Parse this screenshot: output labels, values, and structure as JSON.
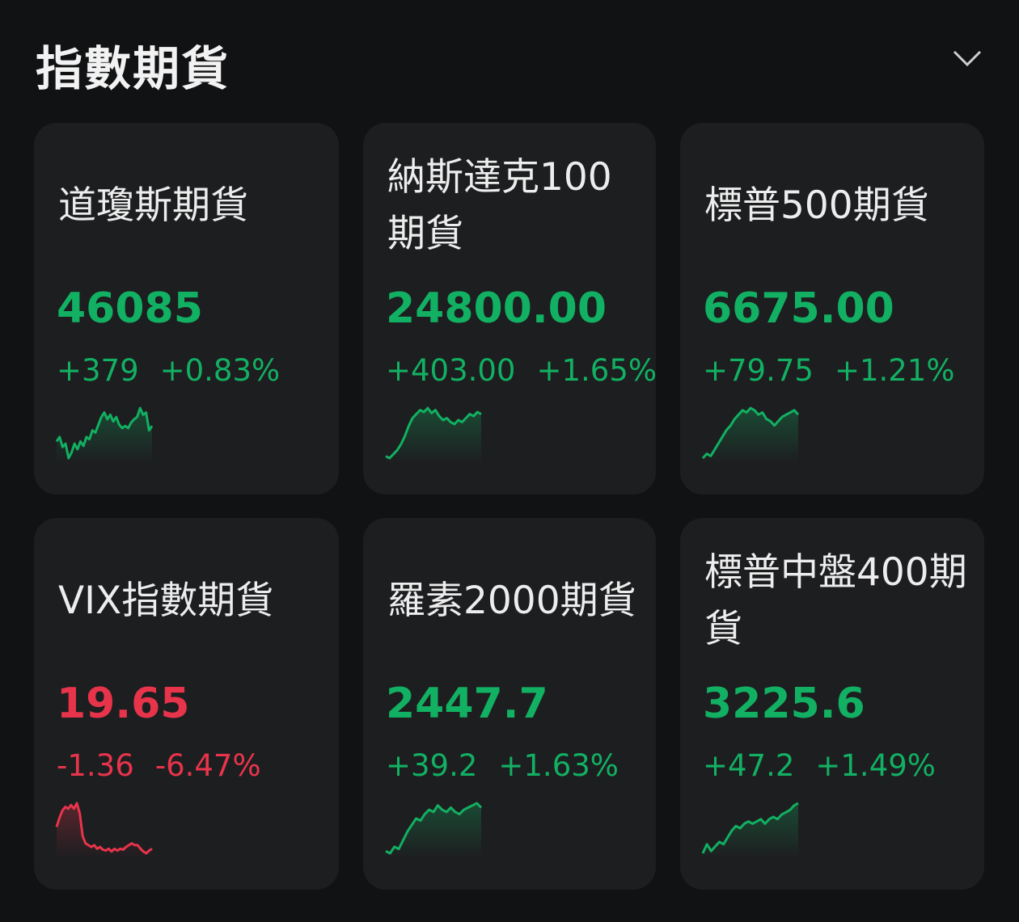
{
  "header": {
    "title": "指數期貨",
    "collapse_icon": "chevron-down-icon"
  },
  "colors": {
    "background": "#111214",
    "card": "#1d1e20",
    "up": "#12b062",
    "down": "#e8344b"
  },
  "cards": [
    {
      "name": "道瓊斯期貨",
      "value": "46085",
      "change": "+379",
      "change_pct": "+0.83%",
      "trend": "up",
      "sparkline": [
        40,
        44,
        35,
        38,
        25,
        30,
        38,
        33,
        40,
        36,
        44,
        42,
        50,
        48,
        55,
        62,
        66,
        60,
        64,
        58,
        62,
        55,
        52,
        54,
        52,
        57,
        60,
        62,
        70,
        64,
        66,
        50,
        54
      ]
    },
    {
      "name": "納斯達克100期貨",
      "value": "24800.00",
      "change": "+403.00",
      "change_pct": "+1.65%",
      "trend": "up",
      "sparkline": [
        20,
        18,
        22,
        26,
        32,
        40,
        50,
        58,
        62,
        66,
        64,
        68,
        63,
        66,
        60,
        56,
        58,
        54,
        52,
        56,
        54,
        58,
        62,
        60,
        64,
        62
      ]
    },
    {
      "name": "標普500期貨",
      "value": "6675.00",
      "change": "+79.75",
      "change_pct": "+1.21%",
      "trend": "up",
      "sparkline": [
        20,
        24,
        22,
        28,
        34,
        40,
        46,
        50,
        56,
        60,
        64,
        62,
        66,
        64,
        60,
        62,
        56,
        54,
        50,
        54,
        58,
        60,
        62,
        64,
        60
      ]
    },
    {
      "name": "VIX指數期貨",
      "value": "19.65",
      "change": "-1.36",
      "change_pct": "-6.47%",
      "trend": "down",
      "sparkline": [
        40,
        50,
        58,
        62,
        60,
        64,
        60,
        66,
        55,
        30,
        22,
        20,
        18,
        20,
        16,
        18,
        15,
        14,
        16,
        13,
        16,
        14,
        16,
        15,
        18,
        20,
        22,
        20,
        20,
        16,
        13,
        11,
        14,
        16
      ]
    },
    {
      "name": "羅素2000期貨",
      "value": "2447.7",
      "change": "+39.2",
      "change_pct": "+1.63%",
      "trend": "up",
      "sparkline": [
        22,
        20,
        26,
        24,
        32,
        40,
        46,
        52,
        50,
        56,
        60,
        58,
        64,
        60,
        58,
        62,
        58,
        56,
        60,
        62,
        64,
        66,
        62
      ]
    },
    {
      "name": "標普中盤400期貨",
      "value": "3225.6",
      "change": "+47.2",
      "change_pct": "+1.49%",
      "trend": "up",
      "sparkline": [
        20,
        28,
        22,
        26,
        30,
        28,
        34,
        40,
        44,
        42,
        46,
        48,
        46,
        48,
        50,
        46,
        50,
        52,
        50,
        54,
        56,
        58,
        62,
        64
      ]
    }
  ]
}
